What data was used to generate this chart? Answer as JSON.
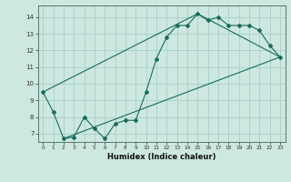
{
  "title": "",
  "xlabel": "Humidex (Indice chaleur)",
  "bg_color": "#cce8e0",
  "line_color": "#1a6b5a",
  "grid_color": "#aacfc8",
  "xlim": [
    -0.5,
    23.5
  ],
  "ylim": [
    6.5,
    14.7
  ],
  "xticks": [
    0,
    1,
    2,
    3,
    4,
    5,
    6,
    7,
    8,
    9,
    10,
    11,
    12,
    13,
    14,
    15,
    16,
    17,
    18,
    19,
    20,
    21,
    22,
    23
  ],
  "yticks": [
    7,
    8,
    9,
    10,
    11,
    12,
    13,
    14
  ],
  "line1_x": [
    0,
    1,
    2,
    3,
    4,
    5,
    6,
    7,
    8,
    9,
    10,
    11,
    12,
    13,
    14,
    15,
    16,
    17,
    18,
    19,
    20,
    21,
    22,
    23
  ],
  "line1_y": [
    9.5,
    8.3,
    6.7,
    6.8,
    8.0,
    7.3,
    6.7,
    7.6,
    7.8,
    7.8,
    9.5,
    11.5,
    12.8,
    13.5,
    13.5,
    14.2,
    13.8,
    14.0,
    13.5,
    13.5,
    13.5,
    13.2,
    12.3,
    11.6
  ],
  "line3_x": [
    0,
    15,
    23
  ],
  "line3_y": [
    9.5,
    14.2,
    11.6
  ],
  "line4_x": [
    2,
    23
  ],
  "line4_y": [
    6.7,
    11.6
  ]
}
